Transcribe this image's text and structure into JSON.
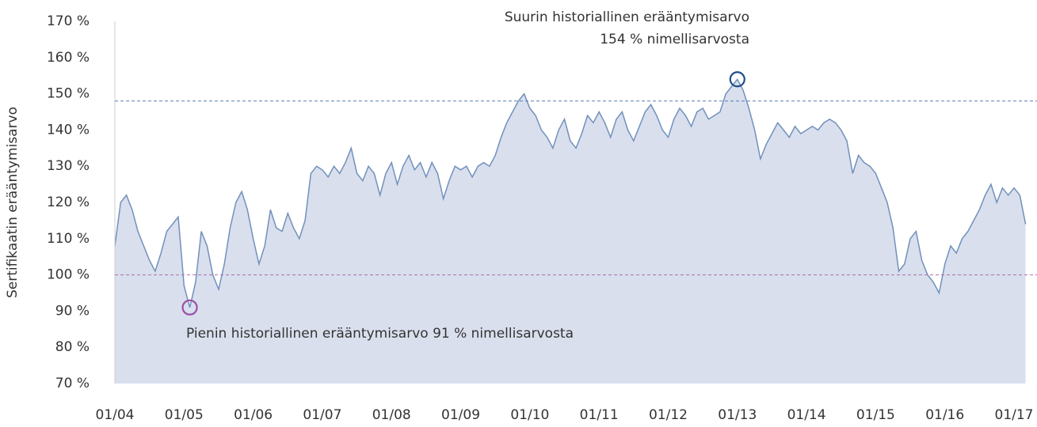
{
  "chart_data": {
    "type": "area",
    "y_label": "Sertifikaatin erääntymisarvo",
    "x": [
      "01/04",
      "02/04",
      "03/04",
      "04/04",
      "05/04",
      "06/04",
      "07/04",
      "08/04",
      "09/04",
      "10/04",
      "11/04",
      "12/04",
      "01/05",
      "02/05",
      "03/05",
      "04/05",
      "05/05",
      "06/05",
      "07/05",
      "08/05",
      "09/05",
      "10/05",
      "11/05",
      "12/05",
      "01/06",
      "02/06",
      "03/06",
      "04/06",
      "05/06",
      "06/06",
      "07/06",
      "08/06",
      "09/06",
      "10/06",
      "11/06",
      "12/06",
      "01/07",
      "02/07",
      "03/07",
      "04/07",
      "05/07",
      "06/07",
      "07/07",
      "08/07",
      "09/07",
      "10/07",
      "11/07",
      "12/07",
      "01/08",
      "02/08",
      "03/08",
      "04/08",
      "05/08",
      "06/08",
      "07/08",
      "08/08",
      "09/08",
      "10/08",
      "11/08",
      "12/08",
      "01/09",
      "02/09",
      "03/09",
      "04/09",
      "05/09",
      "06/09",
      "07/09",
      "08/09",
      "09/09",
      "10/09",
      "11/09",
      "12/09",
      "01/10",
      "02/10",
      "03/10",
      "04/10",
      "05/10",
      "06/10",
      "07/10",
      "08/10",
      "09/10",
      "10/10",
      "11/10",
      "12/10",
      "01/11",
      "02/11",
      "03/11",
      "04/11",
      "05/11",
      "06/11",
      "07/11",
      "08/11",
      "09/11",
      "10/11",
      "11/11",
      "12/11",
      "01/12",
      "02/12",
      "03/12",
      "04/12",
      "05/12",
      "06/12",
      "07/12",
      "08/12",
      "09/12",
      "10/12",
      "11/12",
      "12/12",
      "01/13",
      "02/13",
      "03/13",
      "04/13",
      "05/13",
      "06/13",
      "07/13",
      "08/13",
      "09/13",
      "10/13",
      "11/13",
      "12/13",
      "01/14",
      "02/14",
      "03/14",
      "04/14",
      "05/14",
      "06/14",
      "07/14",
      "08/14",
      "09/14",
      "10/14",
      "11/14",
      "12/14",
      "01/15",
      "02/15",
      "03/15",
      "04/15",
      "05/15",
      "06/15",
      "07/15",
      "08/15",
      "09/15",
      "10/15",
      "11/15",
      "12/15",
      "01/16",
      "02/16",
      "03/16",
      "04/16",
      "05/16",
      "06/16",
      "07/16",
      "08/16",
      "09/16",
      "10/16",
      "11/16",
      "12/16",
      "01/17",
      "02/17",
      "03/17"
    ],
    "series": [
      {
        "color": "#7191bb",
        "fill": "#d9dfed",
        "values": [
          108,
          120,
          122,
          118,
          112,
          108,
          104,
          101,
          106,
          112,
          114,
          116,
          97,
          91,
          98,
          112,
          108,
          100,
          96,
          103,
          113,
          120,
          123,
          118,
          110,
          103,
          108,
          118,
          113,
          112,
          117,
          113,
          110,
          115,
          128,
          130,
          129,
          127,
          130,
          128,
          131,
          135,
          128,
          126,
          130,
          128,
          122,
          128,
          131,
          125,
          130,
          133,
          129,
          131,
          127,
          131,
          128,
          121,
          126,
          130,
          129,
          130,
          127,
          130,
          131,
          130,
          133,
          138,
          142,
          145,
          148,
          150,
          146,
          144,
          140,
          138,
          135,
          140,
          143,
          137,
          135,
          139,
          144,
          142,
          145,
          142,
          138,
          143,
          145,
          140,
          137,
          141,
          145,
          147,
          144,
          140,
          138,
          143,
          146,
          144,
          141,
          145,
          146,
          143,
          144,
          145,
          150,
          152,
          154,
          151,
          146,
          140,
          132,
          136,
          139,
          142,
          140,
          138,
          141,
          139,
          140,
          141,
          140,
          142,
          143,
          142,
          140,
          137,
          128,
          133,
          131,
          130,
          128,
          124,
          120,
          113,
          101,
          103,
          110,
          112,
          104,
          100,
          98,
          95,
          103,
          108,
          106,
          110,
          112,
          115,
          118,
          122,
          125,
          120,
          124,
          122,
          124,
          122,
          114
        ]
      }
    ],
    "xticks": [
      "01/04",
      "01/05",
      "01/06",
      "01/07",
      "01/08",
      "01/09",
      "01/10",
      "01/11",
      "01/12",
      "01/13",
      "01/14",
      "01/15",
      "01/16",
      "01/17"
    ],
    "ylim": [
      70,
      170
    ],
    "yticks": [
      {
        "value": 70,
        "label": "70 %"
      },
      {
        "value": 80,
        "label": "80 %"
      },
      {
        "value": 90,
        "label": "90 %"
      },
      {
        "value": 100,
        "label": "100 %"
      },
      {
        "value": 110,
        "label": "110 %"
      },
      {
        "value": 120,
        "label": "120 %"
      },
      {
        "value": 130,
        "label": "130 %"
      },
      {
        "value": 140,
        "label": "140 %"
      },
      {
        "value": 150,
        "label": "150 %"
      },
      {
        "value": 160,
        "label": "160 %"
      },
      {
        "value": 170,
        "label": "170 %"
      }
    ],
    "reference_lines": [
      {
        "value": 148,
        "color": "#5a7db0"
      },
      {
        "value": 100,
        "color": "#a870b0"
      }
    ],
    "annotations": [
      {
        "text": [
          "Suurin historiallinen erääntymisarvo",
          "154 % nimellisarvosta"
        ],
        "x": "01/13",
        "value": 154,
        "color": "#1f4e8c",
        "position": "above"
      },
      {
        "text": [
          "Pienin historiallinen erääntymisarvo 91 % nimellisarvosta"
        ],
        "x": "02/05",
        "value": 91,
        "color": "#9b4fa8",
        "position": "below"
      }
    ]
  }
}
